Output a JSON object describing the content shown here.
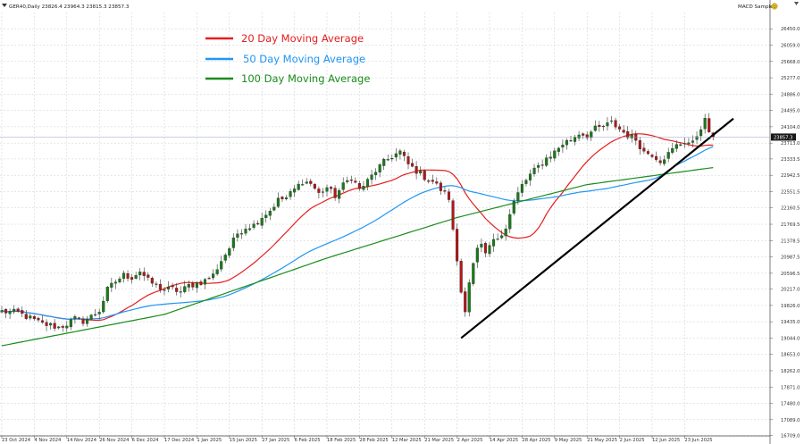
{
  "window": {
    "symbol_line": "GER40,Daily  23826.4 23964.3 23815.3 23857.3",
    "indicator_label": "MACD Sample",
    "indicator_icon": "smiley-icon"
  },
  "colors": {
    "up_candle": "#1a7a1a",
    "down_candle": "#b01818",
    "ma20": "#e31e1e",
    "ma50": "#2196f3",
    "ma100": "#1b8c1b",
    "trendline": "#000000",
    "grid": "#c8cdd6",
    "price_tag_bg": "#1a1a1a"
  },
  "chart_data": {
    "type": "line",
    "title": "",
    "xlabel": "",
    "ylabel": "",
    "ylim": [
      16700,
      26840
    ],
    "grid": true,
    "legend_position": "top-left",
    "y_ticks": [
      "26450.0",
      "26059.0",
      "25668.0",
      "25277.0",
      "24886.0",
      "24495.0",
      "24104.0",
      "23713.0",
      "23333.5",
      "22942.5",
      "22551.5",
      "22160.5",
      "21769.5",
      "21378.5",
      "20987.5",
      "20596.5",
      "20217.0",
      "19826.0",
      "19435.0",
      "19044.0",
      "18653.0",
      "18262.0",
      "17871.0",
      "17480.0",
      "17089.0",
      "16709.0"
    ],
    "x_ticks": [
      {
        "label": "23 Oct 2024",
        "x": 0
      },
      {
        "label": "4 Nov 2024",
        "x": 8
      },
      {
        "label": "14 Nov 2024",
        "x": 16
      },
      {
        "label": "26 Nov 2024",
        "x": 24
      },
      {
        "label": "6 Dec 2024",
        "x": 32
      },
      {
        "label": "17 Dec 2024",
        "x": 40
      },
      {
        "label": "1 Jan 2025",
        "x": 48
      },
      {
        "label": "15 Jan 2025",
        "x": 56
      },
      {
        "label": "27 Jan 2025",
        "x": 64
      },
      {
        "label": "6 Feb 2025",
        "x": 72
      },
      {
        "label": "18 Feb 2025",
        "x": 80
      },
      {
        "label": "28 Feb 2025",
        "x": 88
      },
      {
        "label": "12 Mar 2025",
        "x": 96
      },
      {
        "label": "21 Mar 2025",
        "x": 104
      },
      {
        "label": "2 Apr 2025",
        "x": 112
      },
      {
        "label": "14 Apr 2025",
        "x": 120
      },
      {
        "label": "28 Apr 2025",
        "x": 128
      },
      {
        "label": "9 May 2025",
        "x": 136
      },
      {
        "label": "21 May 2025",
        "x": 144
      },
      {
        "label": "2 Jun 2025",
        "x": 152
      },
      {
        "label": "12 Jun 2025",
        "x": 160
      },
      {
        "label": "23 Jun 2025",
        "x": 168
      }
    ],
    "current_price": "23857.3",
    "bars_total": 176,
    "close_anchors": [
      [
        0,
        19680
      ],
      [
        4,
        19650
      ],
      [
        8,
        19470
      ],
      [
        10,
        19380
      ],
      [
        12,
        19350
      ],
      [
        14,
        19300
      ],
      [
        16,
        19380
      ],
      [
        18,
        19500
      ],
      [
        20,
        19450
      ],
      [
        22,
        19560
      ],
      [
        24,
        19700
      ],
      [
        26,
        20200
      ],
      [
        28,
        20400
      ],
      [
        30,
        20550
      ],
      [
        32,
        20500
      ],
      [
        34,
        20650
      ],
      [
        36,
        20420
      ],
      [
        38,
        20300
      ],
      [
        40,
        20200
      ],
      [
        42,
        20220
      ],
      [
        44,
        20150
      ],
      [
        46,
        20300
      ],
      [
        48,
        20350
      ],
      [
        50,
        20420
      ],
      [
        52,
        20550
      ],
      [
        54,
        20900
      ],
      [
        56,
        21200
      ],
      [
        58,
        21550
      ],
      [
        60,
        21700
      ],
      [
        62,
        21750
      ],
      [
        64,
        21950
      ],
      [
        66,
        22100
      ],
      [
        68,
        22350
      ],
      [
        70,
        22400
      ],
      [
        72,
        22600
      ],
      [
        74,
        22800
      ],
      [
        76,
        22750
      ],
      [
        78,
        22500
      ],
      [
        80,
        22650
      ],
      [
        82,
        22450
      ],
      [
        84,
        22700
      ],
      [
        86,
        22900
      ],
      [
        88,
        22600
      ],
      [
        90,
        22800
      ],
      [
        92,
        23050
      ],
      [
        94,
        23250
      ],
      [
        96,
        23400
      ],
      [
        98,
        23500
      ],
      [
        100,
        23200
      ],
      [
        102,
        23050
      ],
      [
        104,
        22900
      ],
      [
        106,
        22800
      ],
      [
        108,
        22600
      ],
      [
        110,
        22400
      ],
      [
        111,
        21600
      ],
      [
        112,
        20900
      ],
      [
        113,
        20150
      ],
      [
        114,
        19750
      ],
      [
        115,
        20400
      ],
      [
        116,
        20800
      ],
      [
        117,
        21150
      ],
      [
        118,
        21250
      ],
      [
        119,
        21000
      ],
      [
        120,
        21250
      ],
      [
        122,
        21450
      ],
      [
        124,
        21700
      ],
      [
        126,
        22300
      ],
      [
        128,
        22700
      ],
      [
        130,
        22950
      ],
      [
        132,
        23150
      ],
      [
        134,
        23350
      ],
      [
        136,
        23500
      ],
      [
        138,
        23700
      ],
      [
        140,
        23800
      ],
      [
        142,
        23950
      ],
      [
        144,
        23900
      ],
      [
        146,
        24050
      ],
      [
        148,
        24100
      ],
      [
        150,
        24200
      ],
      [
        152,
        24050
      ],
      [
        154,
        23900
      ],
      [
        156,
        23800
      ],
      [
        158,
        23500
      ],
      [
        160,
        23450
      ],
      [
        162,
        23300
      ],
      [
        164,
        23450
      ],
      [
        166,
        23650
      ],
      [
        168,
        23750
      ],
      [
        170,
        23700
      ],
      [
        172,
        24100
      ],
      [
        173,
        24250
      ],
      [
        174,
        24000
      ],
      [
        175,
        23857
      ]
    ],
    "series": [
      {
        "name": "20 Day Moving Average",
        "period": 20,
        "color": "#e31e1e"
      },
      {
        "name": "50 Day Moving Average",
        "period": 50,
        "color": "#2196f3"
      },
      {
        "name": "100 Day Moving Average",
        "period": 100,
        "color": "#1b8c1b",
        "anchors": [
          [
            0,
            18860
          ],
          [
            40,
            19610
          ],
          [
            80,
            20960
          ],
          [
            112,
            21930
          ],
          [
            144,
            22720
          ],
          [
            176,
            23140
          ]
        ]
      }
    ],
    "annotations": {
      "trendline": {
        "from": [
          113,
          19044
        ],
        "to": [
          180,
          24300
        ]
      }
    }
  }
}
